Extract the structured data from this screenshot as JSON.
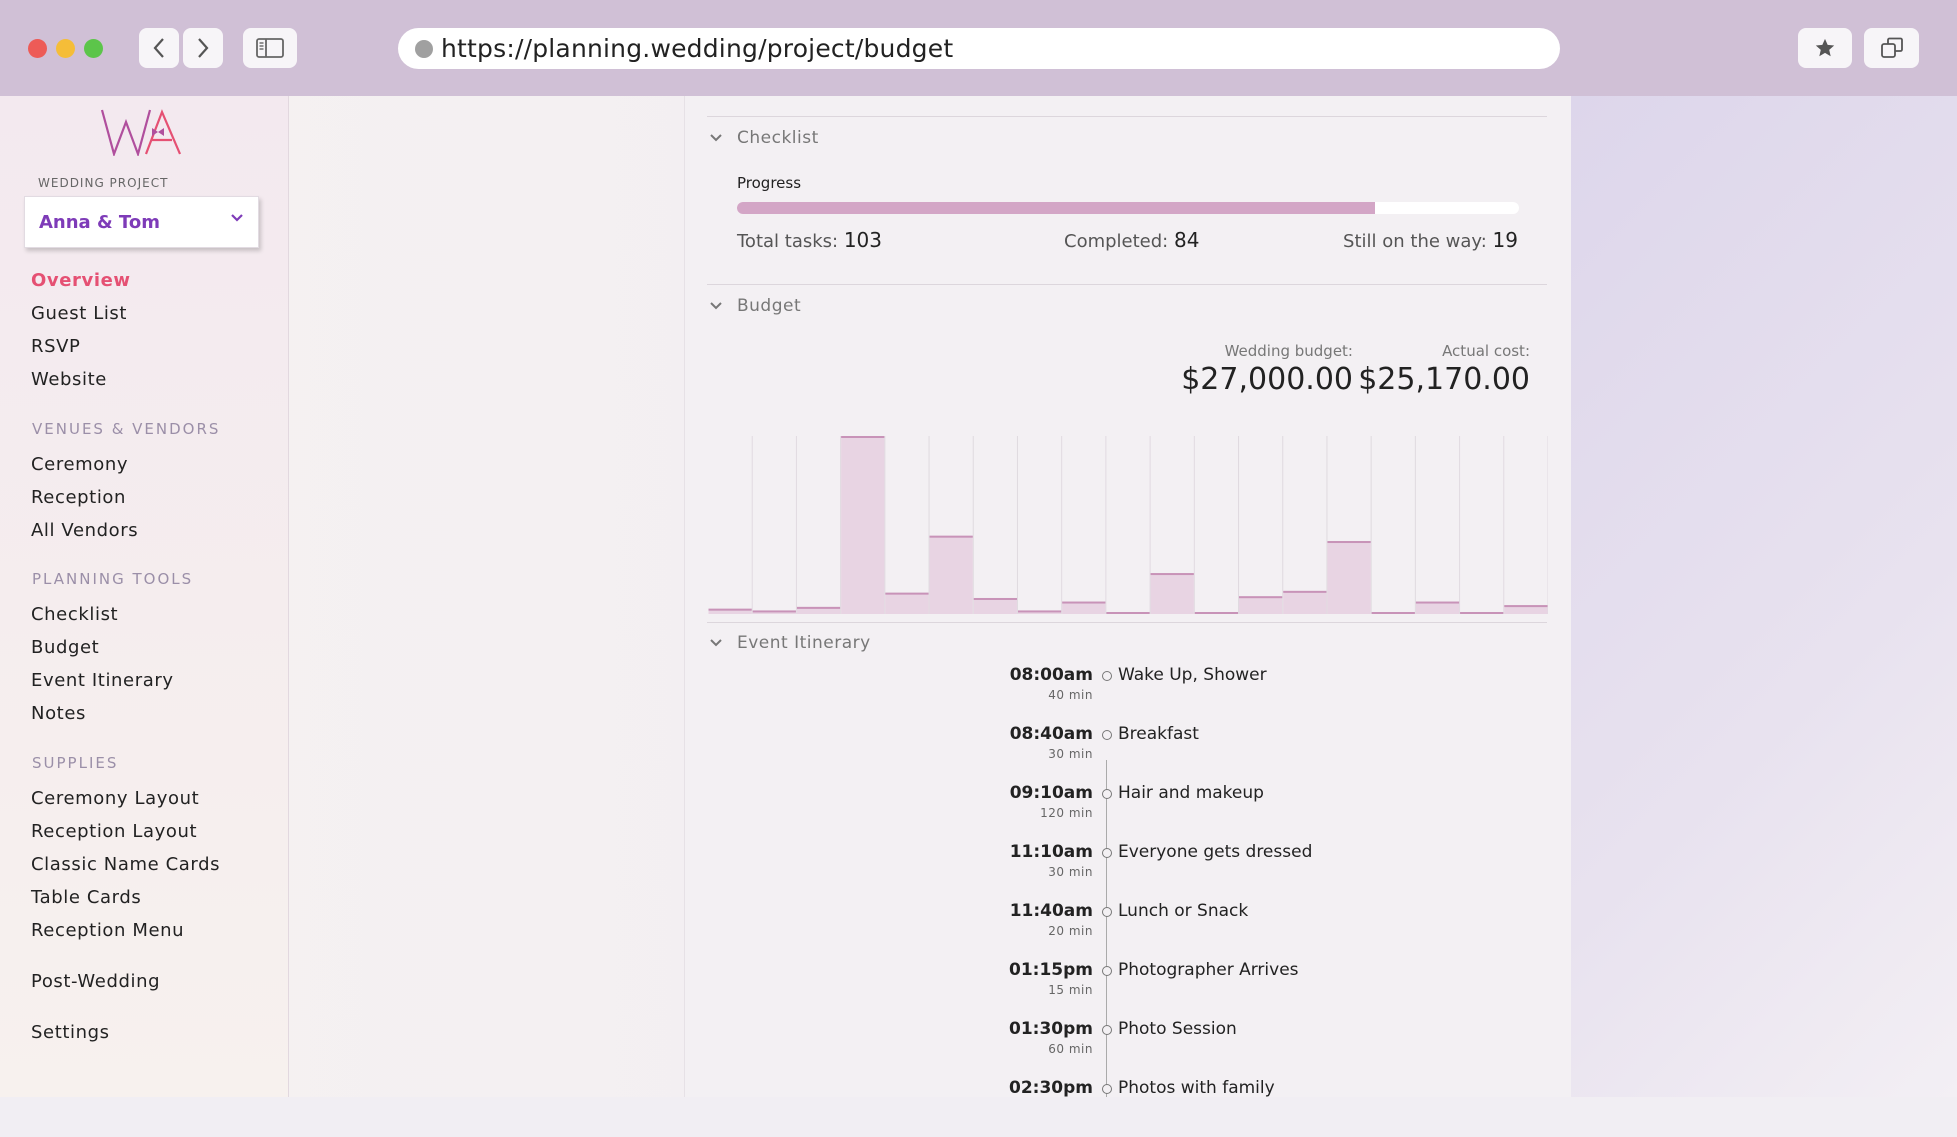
{
  "browser": {
    "url": "https://planning.wedding/project/budget"
  },
  "sidebar": {
    "logo_text": "WA",
    "project_label": "WEDDING PROJECT",
    "project_value": "Anna & Tom",
    "items": [
      {
        "label": "Overview",
        "active": true
      },
      {
        "label": "Guest List"
      },
      {
        "label": "RSVP"
      },
      {
        "label": "Website"
      }
    ],
    "sections": [
      {
        "title": "VENUES & VENDORS",
        "items": [
          "Ceremony",
          "Reception",
          "All Vendors"
        ]
      },
      {
        "title": "PLANNING TOOLS",
        "items": [
          "Checklist",
          "Budget",
          "Event Itinerary",
          "Notes"
        ]
      },
      {
        "title": "SUPPLIES",
        "items": [
          "Ceremony Layout",
          "Reception Layout",
          "Classic Name Cards",
          "Table Cards",
          "Reception Menu"
        ]
      }
    ],
    "post_wedding": "Post-Wedding",
    "settings": "Settings"
  },
  "checklist": {
    "title": "Checklist",
    "progress_label": "Progress",
    "progress_fraction": 0.8155,
    "total_label": "Total tasks:",
    "total_value": "103",
    "completed_label": "Completed:",
    "completed_value": "84",
    "remaining_label": "Still on the way:",
    "remaining_value": "19"
  },
  "budget": {
    "title": "Budget",
    "wedding_budget_label": "Wedding budget:",
    "wedding_budget_value": "$27,000.00",
    "actual_cost_label": "Actual cost:",
    "actual_cost_value": "$25,170.00"
  },
  "chart_data": {
    "type": "bar",
    "title": "",
    "ylim": [
      0,
      100
    ],
    "grid": false,
    "values": [
      3,
      2,
      4,
      100,
      12,
      44,
      9,
      2,
      7,
      1,
      23,
      0,
      10,
      13,
      41,
      0,
      7,
      0,
      5
    ]
  },
  "itinerary": {
    "title": "Event Itinerary",
    "events": [
      {
        "time": "08:00am",
        "duration": "40 min",
        "name": "Wake Up, Shower"
      },
      {
        "time": "08:40am",
        "duration": "30 min",
        "name": "Breakfast"
      },
      {
        "time": "09:10am",
        "duration": "120 min",
        "name": "Hair and makeup"
      },
      {
        "time": "11:10am",
        "duration": "30 min",
        "name": "Everyone gets dressed"
      },
      {
        "time": "11:40am",
        "duration": "20 min",
        "name": "Lunch or Snack"
      },
      {
        "time": "01:15pm",
        "duration": "15 min",
        "name": "Photographer Arrives"
      },
      {
        "time": "01:30pm",
        "duration": "60 min",
        "name": "Photo Session"
      },
      {
        "time": "02:30pm",
        "duration": "",
        "name": "Photos with family"
      }
    ]
  },
  "colors": {
    "accent": "#e55073",
    "project": "#7e3bb8",
    "bar_fill": "#e8d4e3",
    "bar_top": "#c893b8",
    "progress": "#d3a6c6"
  }
}
